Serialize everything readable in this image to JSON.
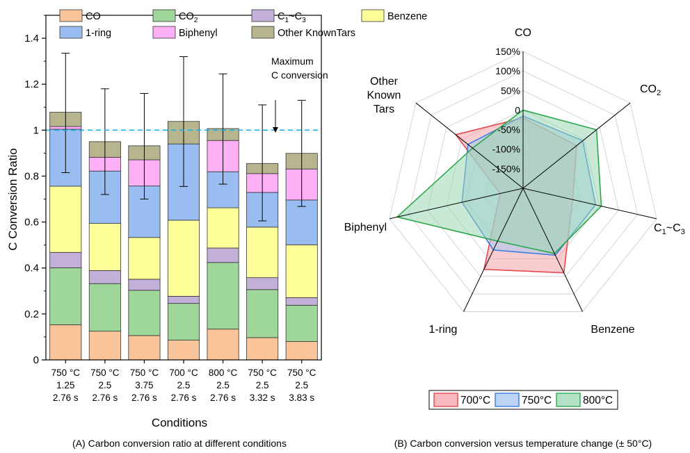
{
  "chart_data": [
    {
      "type": "bar",
      "stacked": true,
      "title": "",
      "caption": "(A) Carbon conversion ratio at different conditions",
      "xlabel": "Conditions",
      "ylabel": "C Conversion Ratio",
      "ylim": [
        0,
        1.5
      ],
      "yticks": [
        "0",
        "0.2",
        "0.4",
        "0.6",
        "0.8",
        "1",
        "1.2",
        "1.4"
      ],
      "categories": [
        [
          "750 °C",
          "1.25",
          "2.76 s"
        ],
        [
          "750 °C",
          "2.5",
          "2.76 s"
        ],
        [
          "750 °C",
          "3.75",
          "2.76 s"
        ],
        [
          "700 °C",
          "2.5",
          "2.76 s"
        ],
        [
          "800 °C",
          "2.5",
          "2.76 s"
        ],
        [
          "750 °C",
          "2.5",
          "3.32 s"
        ],
        [
          "750 °C",
          "2.5",
          "3.83 s"
        ]
      ],
      "series": [
        {
          "name": "CO",
          "sub": "",
          "suffix": "",
          "color": "#f9c49a",
          "values": [
            0.153,
            0.125,
            0.106,
            0.086,
            0.134,
            0.097,
            0.08
          ]
        },
        {
          "name": "CO",
          "sub": "2",
          "suffix": "",
          "color": "#9fd69a",
          "values": [
            0.248,
            0.207,
            0.197,
            0.16,
            0.29,
            0.209,
            0.158
          ]
        },
        {
          "name": "C",
          "sub": "1",
          "suffix": "~C",
          "sub2": "3",
          "color": "#c2b0d8",
          "values": [
            0.067,
            0.057,
            0.048,
            0.031,
            0.063,
            0.052,
            0.033
          ]
        },
        {
          "name": "Benzene",
          "sub": "",
          "suffix": "",
          "color": "#ffff99",
          "values": [
            0.288,
            0.205,
            0.182,
            0.331,
            0.175,
            0.22,
            0.23
          ]
        },
        {
          "name": "1-ring",
          "sub": "",
          "suffix": "",
          "color": "#99bdf0",
          "values": [
            0.248,
            0.228,
            0.224,
            0.332,
            0.157,
            0.151,
            0.195
          ]
        },
        {
          "name": "Biphenyl",
          "sub": "",
          "suffix": "",
          "color": "#fdb0f5",
          "values": [
            0.012,
            0.06,
            0.114,
            0.0,
            0.136,
            0.082,
            0.135
          ]
        },
        {
          "name": "Other KnownTars",
          "sub": "",
          "suffix": "",
          "color": "#b7b58e",
          "values": [
            0.062,
            0.068,
            0.061,
            0.098,
            0.052,
            0.044,
            0.068
          ]
        }
      ],
      "error_bars": [
        {
          "low": 0.815,
          "high": 1.335
        },
        {
          "low": 0.72,
          "high": 1.18
        },
        {
          "low": 0.7,
          "high": 1.16
        },
        {
          "low": 0.755,
          "high": 1.32
        },
        {
          "low": 0.765,
          "high": 1.245
        },
        {
          "low": 0.605,
          "high": 1.11
        },
        {
          "low": 0.668,
          "high": 1.13
        }
      ],
      "reference_line": {
        "y": 1.0,
        "color": "#1eaee8"
      },
      "annotation": {
        "lines": [
          "Maximum",
          "C conversion"
        ]
      }
    },
    {
      "type": "radar",
      "title": "",
      "caption": "(B) Carbon conversion versus temperature change (± 50°C)",
      "axes": [
        {
          "label": "CO",
          "sub": "",
          "suffix": ""
        },
        {
          "label": "CO",
          "sub": "2",
          "suffix": ""
        },
        {
          "label": "C",
          "sub": "1",
          "suffix": "~C",
          "sub2": "3"
        },
        {
          "label": "Benzene",
          "sub": "",
          "suffix": ""
        },
        {
          "label": "1-ring",
          "sub": "",
          "suffix": ""
        },
        {
          "label": "Biphenyl",
          "sub": "",
          "suffix": ""
        },
        {
          "label": "Other Known Tars",
          "sub": "",
          "suffix": ""
        }
      ],
      "range": [
        -200,
        150
      ],
      "ticks": [
        "150%",
        "100%",
        "50%",
        "0",
        "-50%",
        "-100%",
        "-150%"
      ],
      "series": [
        {
          "name": "700°C",
          "color": "#e8474f",
          "fill": "#f4a3a8",
          "values": [
            -20,
            -25,
            -70,
            40,
            30,
            -140,
            20
          ]
        },
        {
          "name": "750°C",
          "color": "#3b7ae0",
          "fill": "#a8c6f2",
          "values": [
            -15,
            -5,
            -10,
            -10,
            -25,
            -40,
            -20
          ]
        },
        {
          "name": "800°C",
          "color": "#2ea84c",
          "fill": "#9ad7b2",
          "values": [
            0,
            40,
            5,
            -15,
            -50,
            130,
            -35
          ]
        }
      ]
    }
  ]
}
